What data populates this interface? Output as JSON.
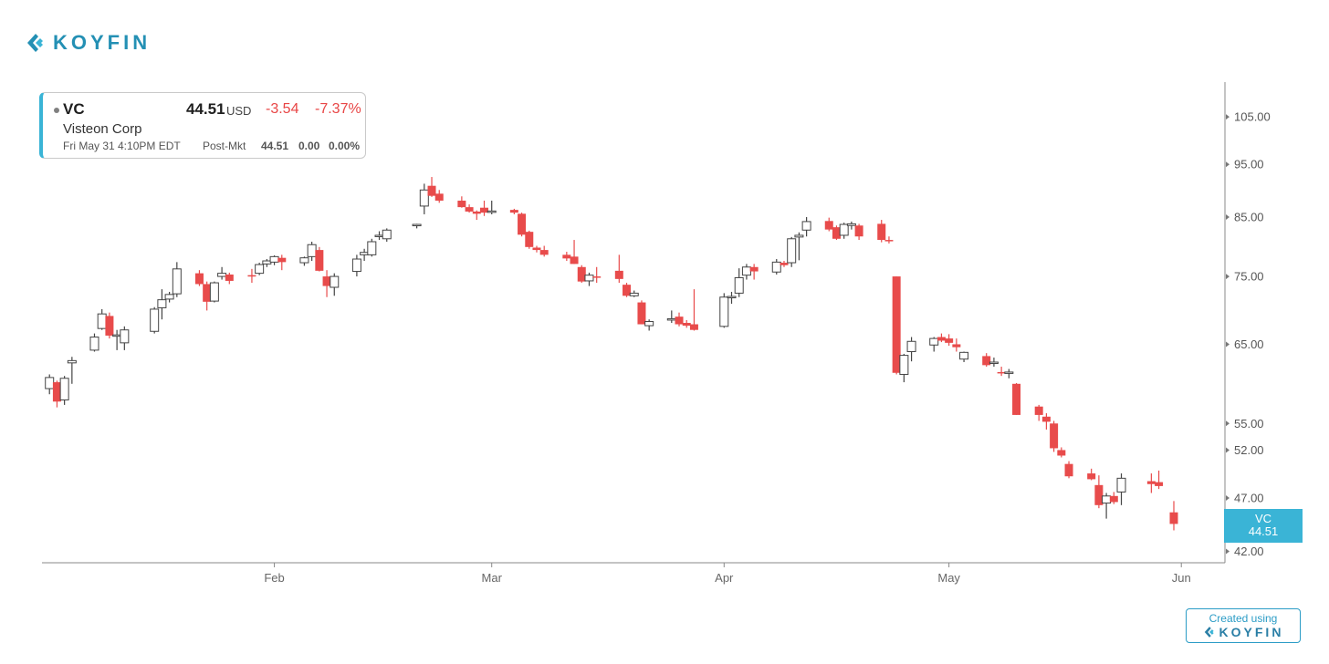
{
  "logo": {
    "text": "KOYFIN"
  },
  "info": {
    "ticker": "VC",
    "price": "44.51",
    "currency": "USD",
    "change": "-3.54",
    "change_pct": "-7.37%",
    "name": "Visteon Corp",
    "date": "Fri May 31 4:10PM EDT",
    "postmkt_label": "Post-Mkt",
    "postmkt_price": "44.51",
    "postmkt_change": "0.00",
    "postmkt_pct": "0.00%"
  },
  "badge": {
    "created": "Created using",
    "brand": "KOYFIN"
  },
  "colors": {
    "accent": "#3ab4d6",
    "brand": "#2490b4",
    "down": "#e84b4b",
    "up_border": "#444444",
    "axis": "#888888"
  },
  "chart_data": {
    "type": "candlestick",
    "x_range": [
      "2024-01-01",
      "2024-05-31"
    ],
    "x_ticks": [
      {
        "label": "Feb",
        "date": "2024-02-01"
      },
      {
        "label": "Mar",
        "date": "2024-03-01"
      },
      {
        "label": "Apr",
        "date": "2024-04-01"
      },
      {
        "label": "May",
        "date": "2024-05-01"
      },
      {
        "label": "Jun",
        "date": "2024-06-01"
      }
    ],
    "y_ticks": [
      "105.00",
      "95.00",
      "85.00",
      "75.00",
      "65.00",
      "55.00",
      "52.00",
      "47.00",
      "42.00"
    ],
    "y_scale": "log",
    "ylim": [
      41,
      113
    ],
    "last_label": {
      "ticker": "VC",
      "price": "44.51",
      "value": 44.51
    },
    "candles": [
      {
        "date": "2024-01-02",
        "o": 59.2,
        "h": 61.0,
        "l": 58.5,
        "c": 60.6,
        "down": false
      },
      {
        "date": "2024-01-03",
        "o": 60.0,
        "h": 60.2,
        "l": 56.9,
        "c": 57.6,
        "down": true
      },
      {
        "date": "2024-01-04",
        "o": 57.8,
        "h": 60.8,
        "l": 57.2,
        "c": 60.5,
        "down": false
      },
      {
        "date": "2024-01-05",
        "o": 62.5,
        "h": 63.3,
        "l": 59.8,
        "c": 62.8,
        "down": false
      },
      {
        "date": "2024-01-08",
        "o": 64.2,
        "h": 66.5,
        "l": 64.0,
        "c": 66.0,
        "down": false
      },
      {
        "date": "2024-01-09",
        "o": 67.2,
        "h": 70.0,
        "l": 67.0,
        "c": 69.3,
        "down": false
      },
      {
        "date": "2024-01-10",
        "o": 69.0,
        "h": 69.5,
        "l": 65.8,
        "c": 66.2,
        "down": true
      },
      {
        "date": "2024-01-11",
        "o": 66.2,
        "h": 67.0,
        "l": 64.2,
        "c": 66.3,
        "down": false
      },
      {
        "date": "2024-01-12",
        "o": 65.2,
        "h": 67.5,
        "l": 64.2,
        "c": 67.0,
        "down": false
      },
      {
        "date": "2024-01-16",
        "o": 66.8,
        "h": 70.3,
        "l": 66.5,
        "c": 70.0,
        "down": false
      },
      {
        "date": "2024-01-17",
        "o": 70.2,
        "h": 73.0,
        "l": 68.5,
        "c": 71.4,
        "down": false
      },
      {
        "date": "2024-01-18",
        "o": 71.5,
        "h": 72.6,
        "l": 71.0,
        "c": 72.2,
        "down": false
      },
      {
        "date": "2024-01-19",
        "o": 72.3,
        "h": 77.3,
        "l": 71.8,
        "c": 76.2,
        "down": false
      },
      {
        "date": "2024-01-22",
        "o": 75.5,
        "h": 76.0,
        "l": 73.5,
        "c": 73.8,
        "down": true
      },
      {
        "date": "2024-01-23",
        "o": 73.8,
        "h": 74.2,
        "l": 69.8,
        "c": 71.1,
        "down": true
      },
      {
        "date": "2024-01-24",
        "o": 71.2,
        "h": 74.2,
        "l": 71.0,
        "c": 74.0,
        "down": false
      },
      {
        "date": "2024-01-25",
        "o": 75.0,
        "h": 76.5,
        "l": 74.5,
        "c": 75.5,
        "down": false
      },
      {
        "date": "2024-01-26",
        "o": 75.3,
        "h": 75.6,
        "l": 73.8,
        "c": 74.3,
        "down": true
      },
      {
        "date": "2024-01-29",
        "o": 75.2,
        "h": 76.2,
        "l": 74.0,
        "c": 75.2,
        "down": true
      },
      {
        "date": "2024-01-30",
        "o": 75.5,
        "h": 77.2,
        "l": 75.2,
        "c": 76.9,
        "down": false
      },
      {
        "date": "2024-01-31",
        "o": 77.0,
        "h": 77.8,
        "l": 76.5,
        "c": 77.5,
        "down": false
      },
      {
        "date": "2024-02-01",
        "o": 77.3,
        "h": 78.4,
        "l": 76.8,
        "c": 78.2,
        "down": false
      },
      {
        "date": "2024-02-02",
        "o": 78.0,
        "h": 78.5,
        "l": 76.0,
        "c": 77.3,
        "down": true
      },
      {
        "date": "2024-02-05",
        "o": 77.2,
        "h": 78.2,
        "l": 76.7,
        "c": 78.0,
        "down": false
      },
      {
        "date": "2024-02-06",
        "o": 78.2,
        "h": 80.7,
        "l": 77.5,
        "c": 80.2,
        "down": false
      },
      {
        "date": "2024-02-07",
        "o": 79.3,
        "h": 79.8,
        "l": 75.8,
        "c": 75.9,
        "down": true
      },
      {
        "date": "2024-02-08",
        "o": 75.0,
        "h": 76.0,
        "l": 71.8,
        "c": 73.5,
        "down": true
      },
      {
        "date": "2024-02-09",
        "o": 73.3,
        "h": 75.5,
        "l": 72.0,
        "c": 75.0,
        "down": false
      },
      {
        "date": "2024-02-12",
        "o": 75.8,
        "h": 78.5,
        "l": 75.0,
        "c": 77.8,
        "down": false
      },
      {
        "date": "2024-02-13",
        "o": 78.5,
        "h": 79.5,
        "l": 77.5,
        "c": 78.9,
        "down": false
      },
      {
        "date": "2024-02-14",
        "o": 78.5,
        "h": 81.2,
        "l": 78.2,
        "c": 80.7,
        "down": false
      },
      {
        "date": "2024-02-15",
        "o": 81.7,
        "h": 82.5,
        "l": 81.0,
        "c": 81.8,
        "down": false
      },
      {
        "date": "2024-02-16",
        "o": 81.2,
        "h": 83.0,
        "l": 80.7,
        "c": 82.7,
        "down": false
      },
      {
        "date": "2024-02-20",
        "o": 83.5,
        "h": 83.8,
        "l": 83.0,
        "c": 83.7,
        "down": false
      },
      {
        "date": "2024-02-21",
        "o": 87.0,
        "h": 91.2,
        "l": 85.5,
        "c": 90.0,
        "down": false
      },
      {
        "date": "2024-02-22",
        "o": 90.8,
        "h": 92.5,
        "l": 88.7,
        "c": 88.9,
        "down": true
      },
      {
        "date": "2024-02-23",
        "o": 89.3,
        "h": 90.0,
        "l": 87.6,
        "c": 88.0,
        "down": true
      },
      {
        "date": "2024-02-26",
        "o": 88.0,
        "h": 88.8,
        "l": 86.7,
        "c": 86.8,
        "down": true
      },
      {
        "date": "2024-02-27",
        "o": 86.8,
        "h": 87.3,
        "l": 85.8,
        "c": 86.0,
        "down": true
      },
      {
        "date": "2024-02-28",
        "o": 86.0,
        "h": 86.2,
        "l": 84.5,
        "c": 85.6,
        "down": true
      },
      {
        "date": "2024-02-29",
        "o": 86.7,
        "h": 88.0,
        "l": 85.2,
        "c": 85.8,
        "down": true
      },
      {
        "date": "2024-03-01",
        "o": 86.1,
        "h": 88.0,
        "l": 85.5,
        "c": 86.1,
        "down": false
      },
      {
        "date": "2024-03-04",
        "o": 86.3,
        "h": 86.5,
        "l": 85.5,
        "c": 85.8,
        "down": true
      },
      {
        "date": "2024-03-05",
        "o": 85.6,
        "h": 85.8,
        "l": 81.6,
        "c": 81.9,
        "down": true
      },
      {
        "date": "2024-03-06",
        "o": 82.4,
        "h": 82.6,
        "l": 79.5,
        "c": 79.8,
        "down": true
      },
      {
        "date": "2024-03-07",
        "o": 79.7,
        "h": 80.0,
        "l": 78.9,
        "c": 79.3,
        "down": true
      },
      {
        "date": "2024-03-08",
        "o": 79.3,
        "h": 80.0,
        "l": 78.2,
        "c": 78.5,
        "down": true
      },
      {
        "date": "2024-03-11",
        "o": 78.5,
        "h": 79.0,
        "l": 77.5,
        "c": 77.9,
        "down": true
      },
      {
        "date": "2024-03-12",
        "o": 78.2,
        "h": 81.0,
        "l": 77.0,
        "c": 77.0,
        "down": true
      },
      {
        "date": "2024-03-13",
        "o": 76.5,
        "h": 76.8,
        "l": 74.0,
        "c": 74.2,
        "down": true
      },
      {
        "date": "2024-03-14",
        "o": 74.3,
        "h": 75.6,
        "l": 73.5,
        "c": 75.2,
        "down": false
      },
      {
        "date": "2024-03-15",
        "o": 75.0,
        "h": 76.5,
        "l": 74.0,
        "c": 75.0,
        "down": true
      },
      {
        "date": "2024-03-18",
        "o": 75.9,
        "h": 78.5,
        "l": 74.0,
        "c": 74.6,
        "down": true
      },
      {
        "date": "2024-03-19",
        "o": 73.7,
        "h": 74.0,
        "l": 71.8,
        "c": 72.0,
        "down": true
      },
      {
        "date": "2024-03-20",
        "o": 72.0,
        "h": 72.8,
        "l": 71.8,
        "c": 72.4,
        "down": false
      },
      {
        "date": "2024-03-21",
        "o": 71.0,
        "h": 71.3,
        "l": 67.8,
        "c": 67.8,
        "down": true
      },
      {
        "date": "2024-03-22",
        "o": 67.6,
        "h": 68.5,
        "l": 66.9,
        "c": 68.2,
        "down": false
      },
      {
        "date": "2024-03-25",
        "o": 68.5,
        "h": 69.8,
        "l": 68.0,
        "c": 68.6,
        "down": false
      },
      {
        "date": "2024-03-26",
        "o": 68.9,
        "h": 69.5,
        "l": 67.5,
        "c": 67.8,
        "down": true
      },
      {
        "date": "2024-03-27",
        "o": 68.0,
        "h": 68.4,
        "l": 67.3,
        "c": 67.6,
        "down": true
      },
      {
        "date": "2024-03-28",
        "o": 67.8,
        "h": 73.0,
        "l": 66.9,
        "c": 67.0,
        "down": true
      },
      {
        "date": "2024-04-01",
        "o": 67.5,
        "h": 72.4,
        "l": 67.3,
        "c": 71.8,
        "down": false
      },
      {
        "date": "2024-04-02",
        "o": 71.7,
        "h": 72.6,
        "l": 70.8,
        "c": 71.9,
        "down": false
      },
      {
        "date": "2024-04-03",
        "o": 72.4,
        "h": 76.3,
        "l": 71.8,
        "c": 74.8,
        "down": false
      },
      {
        "date": "2024-04-04",
        "o": 75.2,
        "h": 77.0,
        "l": 74.5,
        "c": 76.5,
        "down": false
      },
      {
        "date": "2024-04-05",
        "o": 76.5,
        "h": 77.0,
        "l": 74.5,
        "c": 75.8,
        "down": true
      },
      {
        "date": "2024-04-08",
        "o": 75.7,
        "h": 77.8,
        "l": 75.3,
        "c": 77.3,
        "down": false
      },
      {
        "date": "2024-04-09",
        "o": 77.2,
        "h": 77.5,
        "l": 76.5,
        "c": 76.8,
        "down": true
      },
      {
        "date": "2024-04-10",
        "o": 77.2,
        "h": 81.5,
        "l": 76.5,
        "c": 81.2,
        "down": false
      },
      {
        "date": "2024-04-11",
        "o": 81.5,
        "h": 82.3,
        "l": 77.6,
        "c": 81.8,
        "down": false
      },
      {
        "date": "2024-04-12",
        "o": 82.7,
        "h": 85.0,
        "l": 81.6,
        "c": 84.2,
        "down": false
      },
      {
        "date": "2024-04-15",
        "o": 84.3,
        "h": 84.9,
        "l": 82.5,
        "c": 82.8,
        "down": true
      },
      {
        "date": "2024-04-16",
        "o": 83.2,
        "h": 83.5,
        "l": 81.0,
        "c": 81.2,
        "down": true
      },
      {
        "date": "2024-04-17",
        "o": 81.8,
        "h": 84.0,
        "l": 81.2,
        "c": 83.7,
        "down": false
      },
      {
        "date": "2024-04-18",
        "o": 83.5,
        "h": 84.2,
        "l": 82.8,
        "c": 83.8,
        "down": false
      },
      {
        "date": "2024-04-19",
        "o": 83.5,
        "h": 83.8,
        "l": 81.0,
        "c": 81.6,
        "down": true
      },
      {
        "date": "2024-04-22",
        "o": 83.8,
        "h": 84.5,
        "l": 80.6,
        "c": 81.0,
        "down": true
      },
      {
        "date": "2024-04-23",
        "o": 81.0,
        "h": 81.6,
        "l": 80.4,
        "c": 80.8,
        "down": true
      },
      {
        "date": "2024-04-24",
        "o": 75.0,
        "h": 75.0,
        "l": 61.0,
        "c": 61.2,
        "down": true
      },
      {
        "date": "2024-04-25",
        "o": 61.0,
        "h": 63.7,
        "l": 60.0,
        "c": 63.5,
        "down": false
      },
      {
        "date": "2024-04-26",
        "o": 64.0,
        "h": 66.0,
        "l": 62.7,
        "c": 65.4,
        "down": false
      },
      {
        "date": "2024-04-29",
        "o": 64.9,
        "h": 66.0,
        "l": 64.0,
        "c": 65.8,
        "down": false
      },
      {
        "date": "2024-04-30",
        "o": 66.0,
        "h": 66.5,
        "l": 65.3,
        "c": 65.5,
        "down": true
      },
      {
        "date": "2024-05-01",
        "o": 65.8,
        "h": 66.4,
        "l": 64.8,
        "c": 65.2,
        "down": true
      },
      {
        "date": "2024-05-02",
        "o": 65.0,
        "h": 65.8,
        "l": 64.0,
        "c": 64.6,
        "down": true
      },
      {
        "date": "2024-05-03",
        "o": 63.0,
        "h": 64.0,
        "l": 62.6,
        "c": 63.9,
        "down": false
      },
      {
        "date": "2024-05-06",
        "o": 63.4,
        "h": 63.8,
        "l": 62.0,
        "c": 62.2,
        "down": true
      },
      {
        "date": "2024-05-07",
        "o": 62.5,
        "h": 63.2,
        "l": 62.0,
        "c": 62.6,
        "down": false
      },
      {
        "date": "2024-05-08",
        "o": 61.3,
        "h": 62.0,
        "l": 60.8,
        "c": 61.2,
        "down": true
      },
      {
        "date": "2024-05-09",
        "o": 61.2,
        "h": 61.7,
        "l": 60.5,
        "c": 61.3,
        "down": false
      },
      {
        "date": "2024-05-10",
        "o": 59.8,
        "h": 59.9,
        "l": 56.0,
        "c": 56.0,
        "down": true
      },
      {
        "date": "2024-05-13",
        "o": 57.0,
        "h": 57.2,
        "l": 55.3,
        "c": 56.0,
        "down": true
      },
      {
        "date": "2024-05-14",
        "o": 55.8,
        "h": 56.2,
        "l": 54.3,
        "c": 55.2,
        "down": true
      },
      {
        "date": "2024-05-15",
        "o": 55.0,
        "h": 55.3,
        "l": 51.8,
        "c": 52.2,
        "down": true
      },
      {
        "date": "2024-05-16",
        "o": 52.0,
        "h": 52.3,
        "l": 51.2,
        "c": 51.4,
        "down": true
      },
      {
        "date": "2024-05-17",
        "o": 50.5,
        "h": 50.8,
        "l": 49.0,
        "c": 49.2,
        "down": true
      },
      {
        "date": "2024-05-20",
        "o": 49.5,
        "h": 50.0,
        "l": 48.8,
        "c": 48.9,
        "down": true
      },
      {
        "date": "2024-05-21",
        "o": 48.3,
        "h": 49.3,
        "l": 46.0,
        "c": 46.3,
        "down": true
      },
      {
        "date": "2024-05-22",
        "o": 46.5,
        "h": 47.5,
        "l": 45.0,
        "c": 47.2,
        "down": false
      },
      {
        "date": "2024-05-23",
        "o": 47.2,
        "h": 47.6,
        "l": 46.4,
        "c": 46.6,
        "down": true
      },
      {
        "date": "2024-05-24",
        "o": 47.6,
        "h": 49.5,
        "l": 46.3,
        "c": 49.0,
        "down": false
      },
      {
        "date": "2024-05-28",
        "o": 48.7,
        "h": 49.5,
        "l": 47.5,
        "c": 48.4,
        "down": true
      },
      {
        "date": "2024-05-29",
        "o": 48.6,
        "h": 49.8,
        "l": 47.9,
        "c": 48.2,
        "down": true
      },
      {
        "date": "2024-05-31",
        "o": 45.6,
        "h": 46.7,
        "l": 43.9,
        "c": 44.5,
        "down": true
      }
    ]
  }
}
